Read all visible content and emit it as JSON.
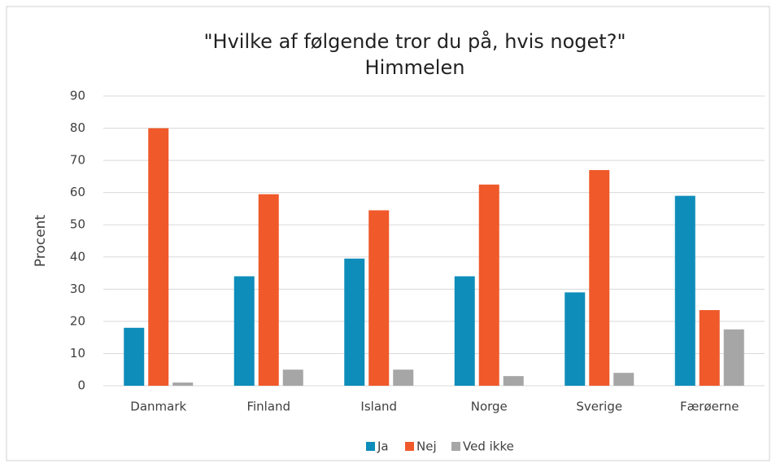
{
  "chart_data": {
    "type": "bar",
    "title": "\"Hvilke af følgende tror du på, hvis noget?\"",
    "subtitle": "Himmelen",
    "y_label": "Procent",
    "categories": [
      "Danmark",
      "Finland",
      "Island",
      "Norge",
      "Sverige",
      "Færøerne"
    ],
    "series": [
      {
        "name": "Ja",
        "color": "#0e8dba",
        "values": [
          18,
          34,
          39.5,
          34,
          29,
          59
        ]
      },
      {
        "name": "Nej",
        "color": "#f0592a",
        "values": [
          80,
          59.5,
          54.5,
          62.5,
          67,
          23.5
        ]
      },
      {
        "name": "Ved ikke",
        "color": "#a6a6a6",
        "values": [
          1,
          5,
          5,
          3,
          4,
          17.5
        ]
      }
    ],
    "ylim": [
      0,
      90
    ],
    "yticks": [
      0,
      10,
      20,
      30,
      40,
      50,
      60,
      70,
      80,
      90
    ],
    "grid": true,
    "legend": "bottom"
  }
}
